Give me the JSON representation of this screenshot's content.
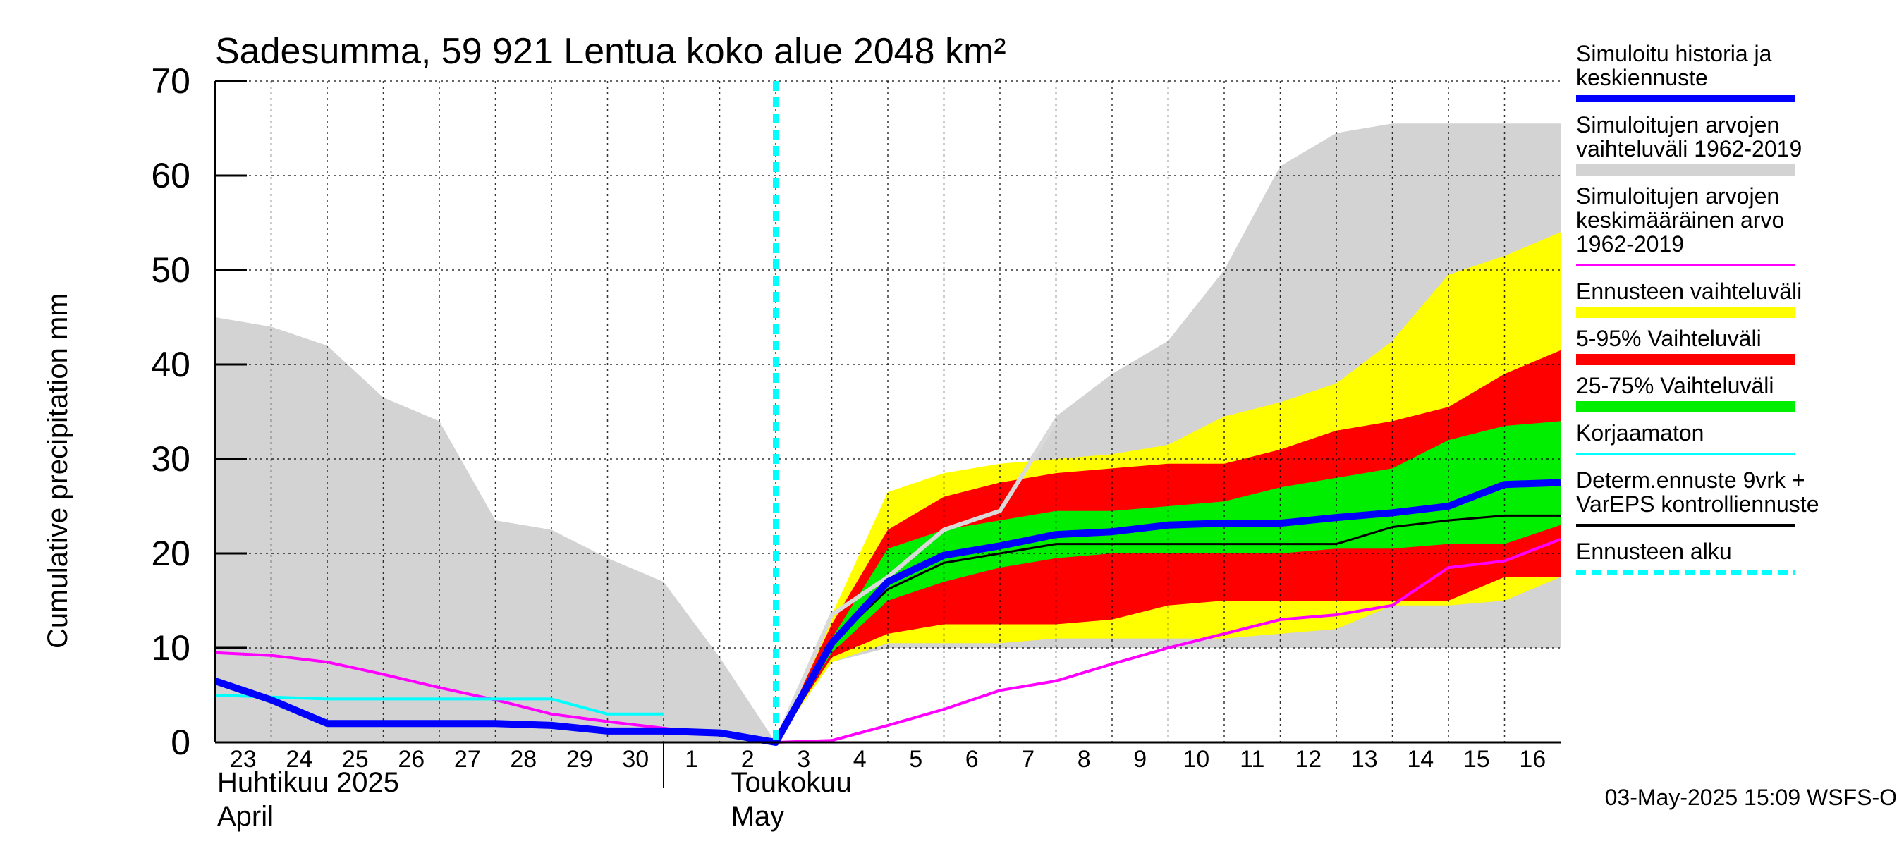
{
  "chart_data": {
    "type": "area",
    "title": "Sadesumma, 59 921 Lentua koko alue 2048 km²",
    "ylabel": "Cumulative precipitation   mm",
    "ylim": [
      0,
      70
    ],
    "yticks": [
      "0",
      "10",
      "20",
      "30",
      "40",
      "50",
      "60",
      "70"
    ],
    "x_labels": [
      "23",
      "24",
      "25",
      "26",
      "27",
      "28",
      "29",
      "30",
      "1",
      "2",
      "3",
      "4",
      "5",
      "6",
      "7",
      "8",
      "9",
      "10",
      "11",
      "12",
      "13",
      "14",
      "15",
      "16"
    ],
    "month_labels": [
      {
        "line1": "Huhtikuu  2025",
        "line2": "April"
      },
      {
        "line1": "Toukokuu",
        "line2": "May"
      }
    ],
    "forecast_start_day": 10,
    "grid": true,
    "legend_position": "right",
    "timestamp": "03-May-2025 15:09 WSFS-O",
    "colors": {
      "history_range": "#d3d3d3",
      "forecast_range": "#ffff00",
      "p5_95": "#ff0000",
      "p25_75": "#00ee00",
      "simulated": "#0000ff",
      "mean": "#ff00ff",
      "uncorrected": "#00ffff",
      "determ": "#000000",
      "forecast_start": "#00ffff",
      "observed_light": "#d9d9d9"
    },
    "legend": [
      {
        "label": "Simuloitu historia ja keskiennuste",
        "lines": [
          "Simuloitu historia ja",
          "keskiennuste"
        ],
        "color": "#0000ff",
        "style": "thick"
      },
      {
        "label": "Simuloitujen arvojen vaihteluväli 1962-2019",
        "lines": [
          "Simuloitujen arvojen",
          "vaihteluväli 1962-2019"
        ],
        "color": "#d3d3d3",
        "style": "band"
      },
      {
        "label": "Simuloitujen arvojen keskimääräinen arvo 1962-2019",
        "lines": [
          "Simuloitujen arvojen",
          "keskimääräinen arvo",
          "   1962-2019"
        ],
        "color": "#ff00ff",
        "style": "line"
      },
      {
        "label": "Ennusteen vaihteluväli",
        "lines": [
          "Ennusteen vaihteluväli"
        ],
        "color": "#ffff00",
        "style": "band"
      },
      {
        "label": "5-95% Vaihteluväli",
        "lines": [
          "5-95% Vaihteluväli"
        ],
        "color": "#ff0000",
        "style": "band"
      },
      {
        "label": "25-75% Vaihteluväli",
        "lines": [
          "25-75% Vaihteluväli"
        ],
        "color": "#00ee00",
        "style": "band"
      },
      {
        "label": "Korjaamaton",
        "lines": [
          "Korjaamaton"
        ],
        "color": "#00ffff",
        "style": "line"
      },
      {
        "label": "Determ.ennuste 9vrk + VarEPS kontrolliennuste",
        "lines": [
          "Determ.ennuste 9vrk +",
          "VarEPS kontrolliennuste"
        ],
        "color": "#000000",
        "style": "line"
      },
      {
        "label": "Ennusteen alku",
        "lines": [
          "Ennusteen alku"
        ],
        "color": "#00ffff",
        "style": "dashed"
      }
    ],
    "series": [
      {
        "key": "history_range",
        "x": [
          0,
          1,
          2,
          3,
          4,
          5,
          6,
          7,
          8,
          9,
          10,
          11,
          12,
          13,
          14,
          15,
          16,
          17,
          18,
          19,
          20,
          21,
          22,
          23,
          24
        ],
        "upper": [
          45,
          44,
          42,
          36.5,
          34,
          23.5,
          22.5,
          19.5,
          17,
          9,
          0,
          13.5,
          16.5,
          22,
          25,
          34.5,
          39,
          42.5,
          50,
          61,
          64.5,
          65.5,
          65.5,
          65.5,
          65.5
        ],
        "lower": [
          0,
          0,
          0,
          0,
          0,
          0,
          0,
          0,
          0,
          0,
          0,
          8.5,
          10,
          10,
          10,
          10,
          10,
          10,
          10,
          10,
          10,
          10,
          10,
          10,
          10
        ]
      },
      {
        "key": "forecast_range",
        "x": [
          10,
          11,
          12,
          13,
          14,
          15,
          16,
          17,
          18,
          19,
          20,
          21,
          22,
          23,
          24
        ],
        "upper": [
          0,
          13.5,
          26.5,
          28.5,
          29.5,
          30,
          30.5,
          31.5,
          34.5,
          36,
          38,
          42.5,
          49.5,
          51.5,
          54
        ],
        "lower": [
          0,
          8.5,
          10.5,
          10.5,
          10.5,
          11,
          11,
          11,
          11,
          11.5,
          12,
          14.5,
          14.5,
          15,
          17.5
        ]
      },
      {
        "key": "p5_95",
        "x": [
          10,
          11,
          12,
          13,
          14,
          15,
          16,
          17,
          18,
          19,
          20,
          21,
          22,
          23,
          24
        ],
        "upper": [
          0,
          12.5,
          22.5,
          26,
          27.5,
          28.5,
          29,
          29.5,
          29.5,
          31,
          33,
          34,
          35.5,
          39,
          41.5
        ],
        "lower": [
          0,
          9,
          11.5,
          12.5,
          12.5,
          12.5,
          13,
          14.5,
          15,
          15,
          15,
          15,
          15,
          17.5,
          17.5
        ]
      },
      {
        "key": "p25_75",
        "x": [
          10,
          11,
          12,
          13,
          14,
          15,
          16,
          17,
          18,
          19,
          20,
          21,
          22,
          23,
          24
        ],
        "upper": [
          0,
          11,
          20.5,
          22.5,
          23.5,
          24.5,
          24.5,
          25,
          25.5,
          27,
          28,
          29,
          32,
          33.5,
          34
        ],
        "lower": [
          0,
          9.5,
          15,
          17,
          18.5,
          19.5,
          20,
          20,
          20,
          20,
          20.5,
          20.5,
          21,
          21,
          23
        ]
      },
      {
        "key": "observed_light",
        "x": [
          10,
          11,
          12,
          13,
          14,
          15
        ],
        "values": [
          0,
          13.5,
          17.5,
          22.5,
          24.5,
          34
        ]
      },
      {
        "key": "mean",
        "x": [
          0,
          1,
          2,
          3,
          4,
          5,
          6,
          7,
          8,
          9,
          10,
          11,
          12,
          13,
          14,
          15,
          16,
          17,
          18,
          19,
          20,
          21,
          22,
          23,
          24
        ],
        "values": [
          9.5,
          9.2,
          8.5,
          7.2,
          5.8,
          4.5,
          3,
          2.2,
          1.5,
          0.8,
          0,
          0.2,
          1.8,
          3.5,
          5.5,
          6.5,
          8.3,
          10,
          11.5,
          13,
          13.5,
          14.5,
          18.5,
          19.2,
          21.5
        ]
      },
      {
        "key": "uncorrected",
        "x": [
          0,
          1,
          2,
          3,
          4,
          5,
          6,
          7,
          8
        ],
        "values": [
          5,
          4.8,
          4.6,
          4.6,
          4.6,
          4.6,
          4.6,
          3,
          3
        ]
      },
      {
        "key": "determ",
        "x": [
          10,
          11,
          12,
          13,
          14,
          15,
          16,
          17,
          18,
          19,
          20,
          21,
          22,
          23,
          24
        ],
        "values": [
          0,
          10.5,
          16.2,
          19,
          20,
          21,
          21,
          21,
          21,
          21,
          21,
          22.8,
          23.5,
          24,
          24
        ]
      },
      {
        "key": "simulated",
        "x": [
          0,
          1,
          2,
          3,
          4,
          5,
          6,
          7,
          8,
          9,
          10,
          11,
          12,
          13,
          14,
          15,
          16,
          17,
          18,
          19,
          20,
          21,
          22,
          23,
          24
        ],
        "values": [
          6.5,
          4.5,
          2,
          2,
          2,
          2,
          1.8,
          1.2,
          1.2,
          1,
          0,
          10.5,
          17,
          19.8,
          20.8,
          22,
          22.3,
          23,
          23.2,
          23.2,
          23.8,
          24.3,
          25,
          27.3,
          27.5
        ]
      }
    ]
  }
}
